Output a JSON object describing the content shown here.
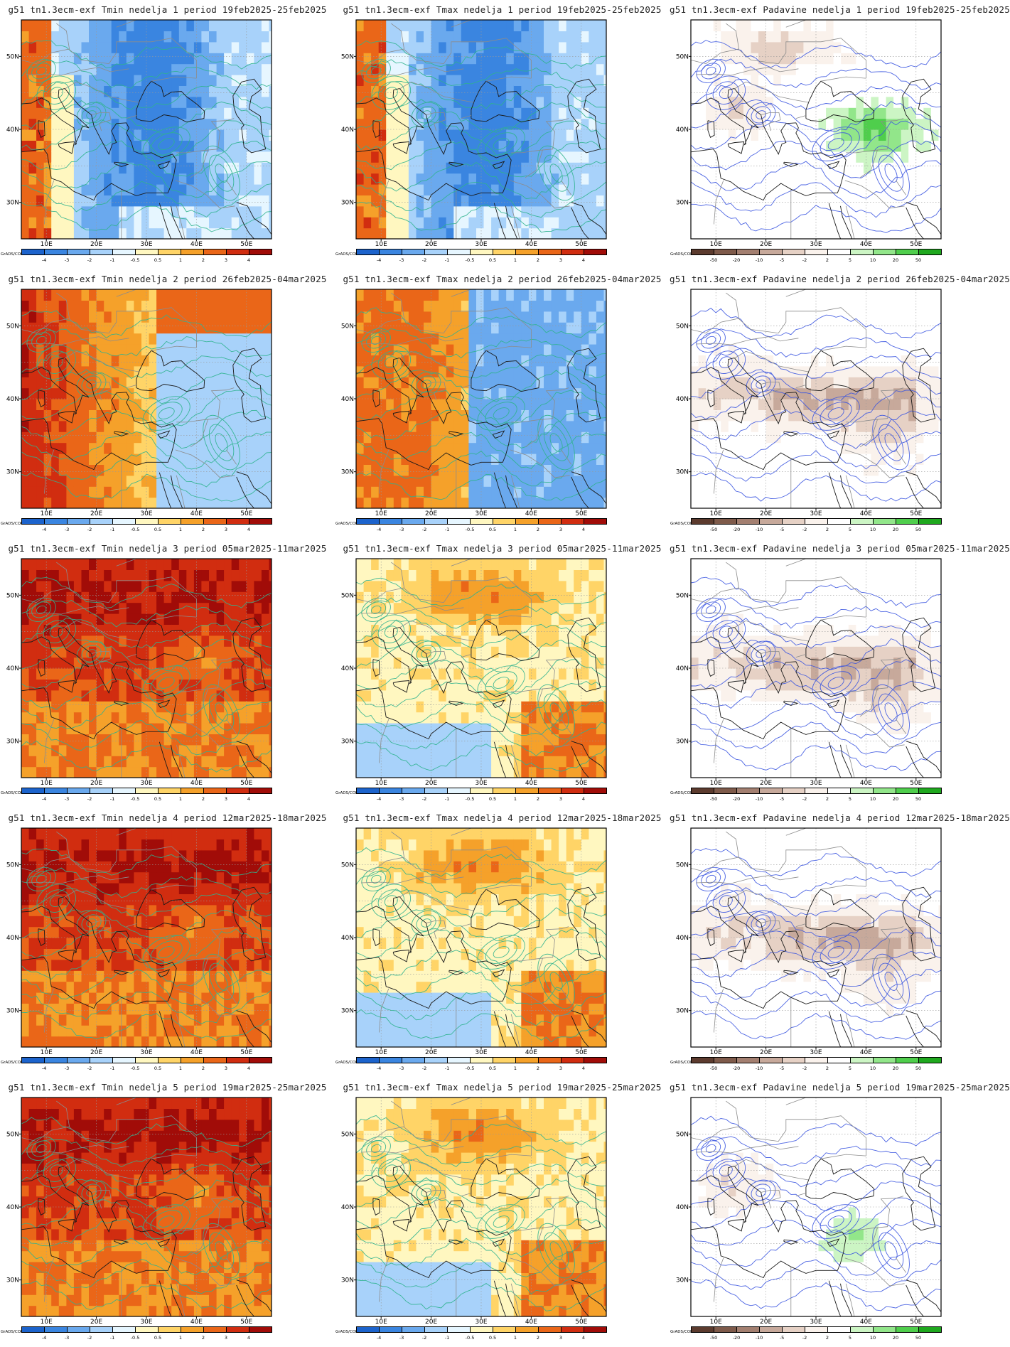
{
  "axes": {
    "lon_labels": [
      "10E",
      "20E",
      "30E",
      "40E",
      "50E"
    ],
    "lat_labels": [
      "50N",
      "40N",
      "30N"
    ]
  },
  "colorbars": {
    "temp": {
      "tag": "GrADS/COLA",
      "colors": [
        "#1c63cc",
        "#3a85e0",
        "#6aa9ee",
        "#a8d2fa",
        "#e6f6ff",
        "#fff7c0",
        "#ffd467",
        "#f5a12a",
        "#ea6618",
        "#d12d10",
        "#a10c08"
      ],
      "ticks": [
        "-4",
        "-3",
        "-2",
        "-1",
        "-0.5",
        "0.5",
        "1",
        "2",
        "3",
        "4"
      ]
    },
    "precip": {
      "tag": "GrADS/COLA",
      "colors": [
        "#5c3b2e",
        "#7e5a4a",
        "#a37f70",
        "#c7a99b",
        "#e6d1c5",
        "#faf2ec",
        "#ffffff",
        "#ccf5c4",
        "#92e68a",
        "#4fce4c",
        "#1fa81e"
      ],
      "ticks": [
        "-50",
        "-20",
        "-10",
        "-5",
        "-2",
        "2",
        "5",
        "10",
        "20",
        "50"
      ]
    }
  },
  "panels": [
    {
      "title": "g51 tn1.3ecm-exf Tmin nedelja 1 period 19feb2025-25feb2025",
      "variable": "Tmin",
      "week": 1,
      "period": "19feb2025-25feb2025",
      "anomaly_tone": "cold",
      "contour_color": "#2fb38f"
    },
    {
      "title": "g51 tn1.3ecm-exf Tmax nedelja 1 period 19feb2025-25feb2025",
      "variable": "Tmax",
      "week": 1,
      "period": "19feb2025-25feb2025",
      "anomaly_tone": "cold",
      "contour_color": "#2fb38f"
    },
    {
      "title": "g51 tn1.3ecm-exf Padavine nedelja 1 period 19feb2025-25feb2025",
      "variable": "Padavine",
      "week": 1,
      "period": "19feb2025-25feb2025",
      "anomaly_tone": "wet",
      "contour_color": "#3a55e0"
    },
    {
      "title": "g51 tn1.3ecm-exf Tmin nedelja 2 period 26feb2025-04mar2025",
      "variable": "Tmin",
      "week": 2,
      "period": "26feb2025-04mar2025",
      "anomaly_tone": "mixed",
      "contour_color": "#2fb38f"
    },
    {
      "title": "g51 tn1.3ecm-exf Tmax nedelja 2 period 26feb2025-04mar2025",
      "variable": "Tmax",
      "week": 2,
      "period": "26feb2025-04mar2025",
      "anomaly_tone": "mixed",
      "contour_color": "#2fb38f"
    },
    {
      "title": "g51 tn1.3ecm-exf Padavine nedelja 2 period 26feb2025-04mar2025",
      "variable": "Padavine",
      "week": 2,
      "period": "26feb2025-04mar2025",
      "anomaly_tone": "dry",
      "contour_color": "#3a55e0"
    },
    {
      "title": "g51 tn1.3ecm-exf Tmin nedelja 3 period 05mar2025-11mar2025",
      "variable": "Tmin",
      "week": 3,
      "period": "05mar2025-11mar2025",
      "anomaly_tone": "warm",
      "contour_color": "#2fb38f"
    },
    {
      "title": "g51 tn1.3ecm-exf Tmax nedelja 3 period 05mar2025-11mar2025",
      "variable": "Tmax",
      "week": 3,
      "period": "05mar2025-11mar2025",
      "anomaly_tone": "mild",
      "contour_color": "#2fb38f"
    },
    {
      "title": "g51 tn1.3ecm-exf Padavine nedelja 3 period 05mar2025-11mar2025",
      "variable": "Padavine",
      "week": 3,
      "period": "05mar2025-11mar2025",
      "anomaly_tone": "dry",
      "contour_color": "#3a55e0"
    },
    {
      "title": "g51 tn1.3ecm-exf Tmin nedelja 4 period 12mar2025-18mar2025",
      "variable": "Tmin",
      "week": 4,
      "period": "12mar2025-18mar2025",
      "anomaly_tone": "warm",
      "contour_color": "#2fb38f"
    },
    {
      "title": "g51 tn1.3ecm-exf Tmax nedelja 4 period 12mar2025-18mar2025",
      "variable": "Tmax",
      "week": 4,
      "period": "12mar2025-18mar2025",
      "anomaly_tone": "mild",
      "contour_color": "#2fb38f"
    },
    {
      "title": "g51 tn1.3ecm-exf Padavine nedelja 4 period 12mar2025-18mar2025",
      "variable": "Padavine",
      "week": 4,
      "period": "12mar2025-18mar2025",
      "anomaly_tone": "dry",
      "contour_color": "#3a55e0"
    },
    {
      "title": "g51 tn1.3ecm-exf Tmin nedelja 5 period 19mar2025-25mar2025",
      "variable": "Tmin",
      "week": 5,
      "period": "19mar2025-25mar2025",
      "anomaly_tone": "warm",
      "contour_color": "#2fb38f"
    },
    {
      "title": "g51 tn1.3ecm-exf Tmax nedelja 5 period 19mar2025-25mar2025",
      "variable": "Tmax",
      "week": 5,
      "period": "19mar2025-25mar2025",
      "anomaly_tone": "mild",
      "contour_color": "#2fb38f"
    },
    {
      "title": "g51 tn1.3ecm-exf Padavine nedelja 5 period 19mar2025-25mar2025",
      "variable": "Padavine",
      "week": 5,
      "period": "19mar2025-25mar2025",
      "anomaly_tone": "mixed",
      "contour_color": "#3a55e0"
    }
  ]
}
